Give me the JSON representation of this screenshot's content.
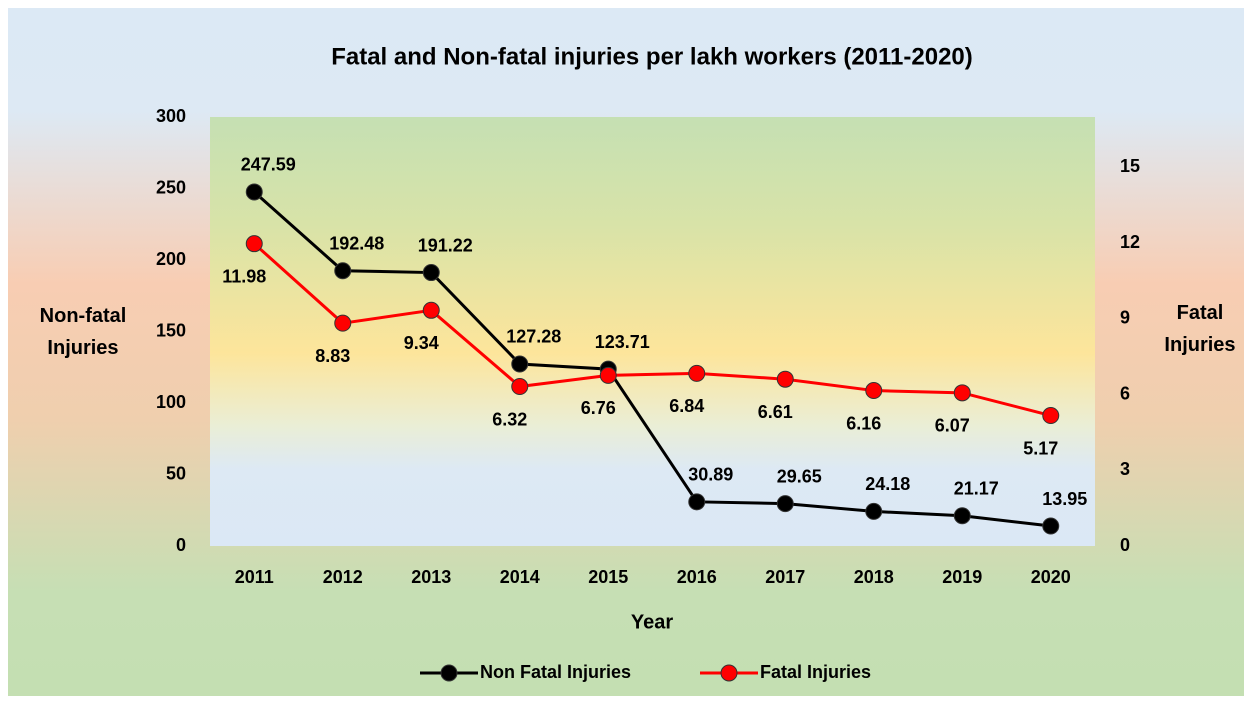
{
  "chart_data": {
    "type": "line",
    "title": "Fatal and Non-fatal injuries per lakh workers (2011-2020)",
    "x_label": "Year",
    "y_label": "Non-fatal Injuries",
    "y2_label": "Fatal Injuries",
    "categories": [
      "2011",
      "2012",
      "2013",
      "2014",
      "2015",
      "2016",
      "2017",
      "2018",
      "2019",
      "2020"
    ],
    "series": [
      {
        "name": "Non Fatal Injuries",
        "color": "#000000",
        "values": [
          247.59,
          192.48,
          191.22,
          127.28,
          123.71,
          30.89,
          29.65,
          24.18,
          21.17,
          13.95
        ]
      },
      {
        "name": "Fatal Injuries",
        "color": "#ff0000",
        "axis": "y2",
        "values": [
          11.98,
          8.83,
          9.34,
          6.32,
          6.76,
          6.84,
          6.61,
          6.16,
          6.07,
          5.17
        ]
      }
    ],
    "ylim": [
      0,
      300
    ],
    "yticks": [
      0,
      50,
      100,
      150,
      200,
      250,
      300
    ],
    "y2lim": [
      0,
      17
    ],
    "y2ticks": [
      0,
      3,
      6,
      9,
      12,
      15
    ],
    "legend": "bottom"
  }
}
